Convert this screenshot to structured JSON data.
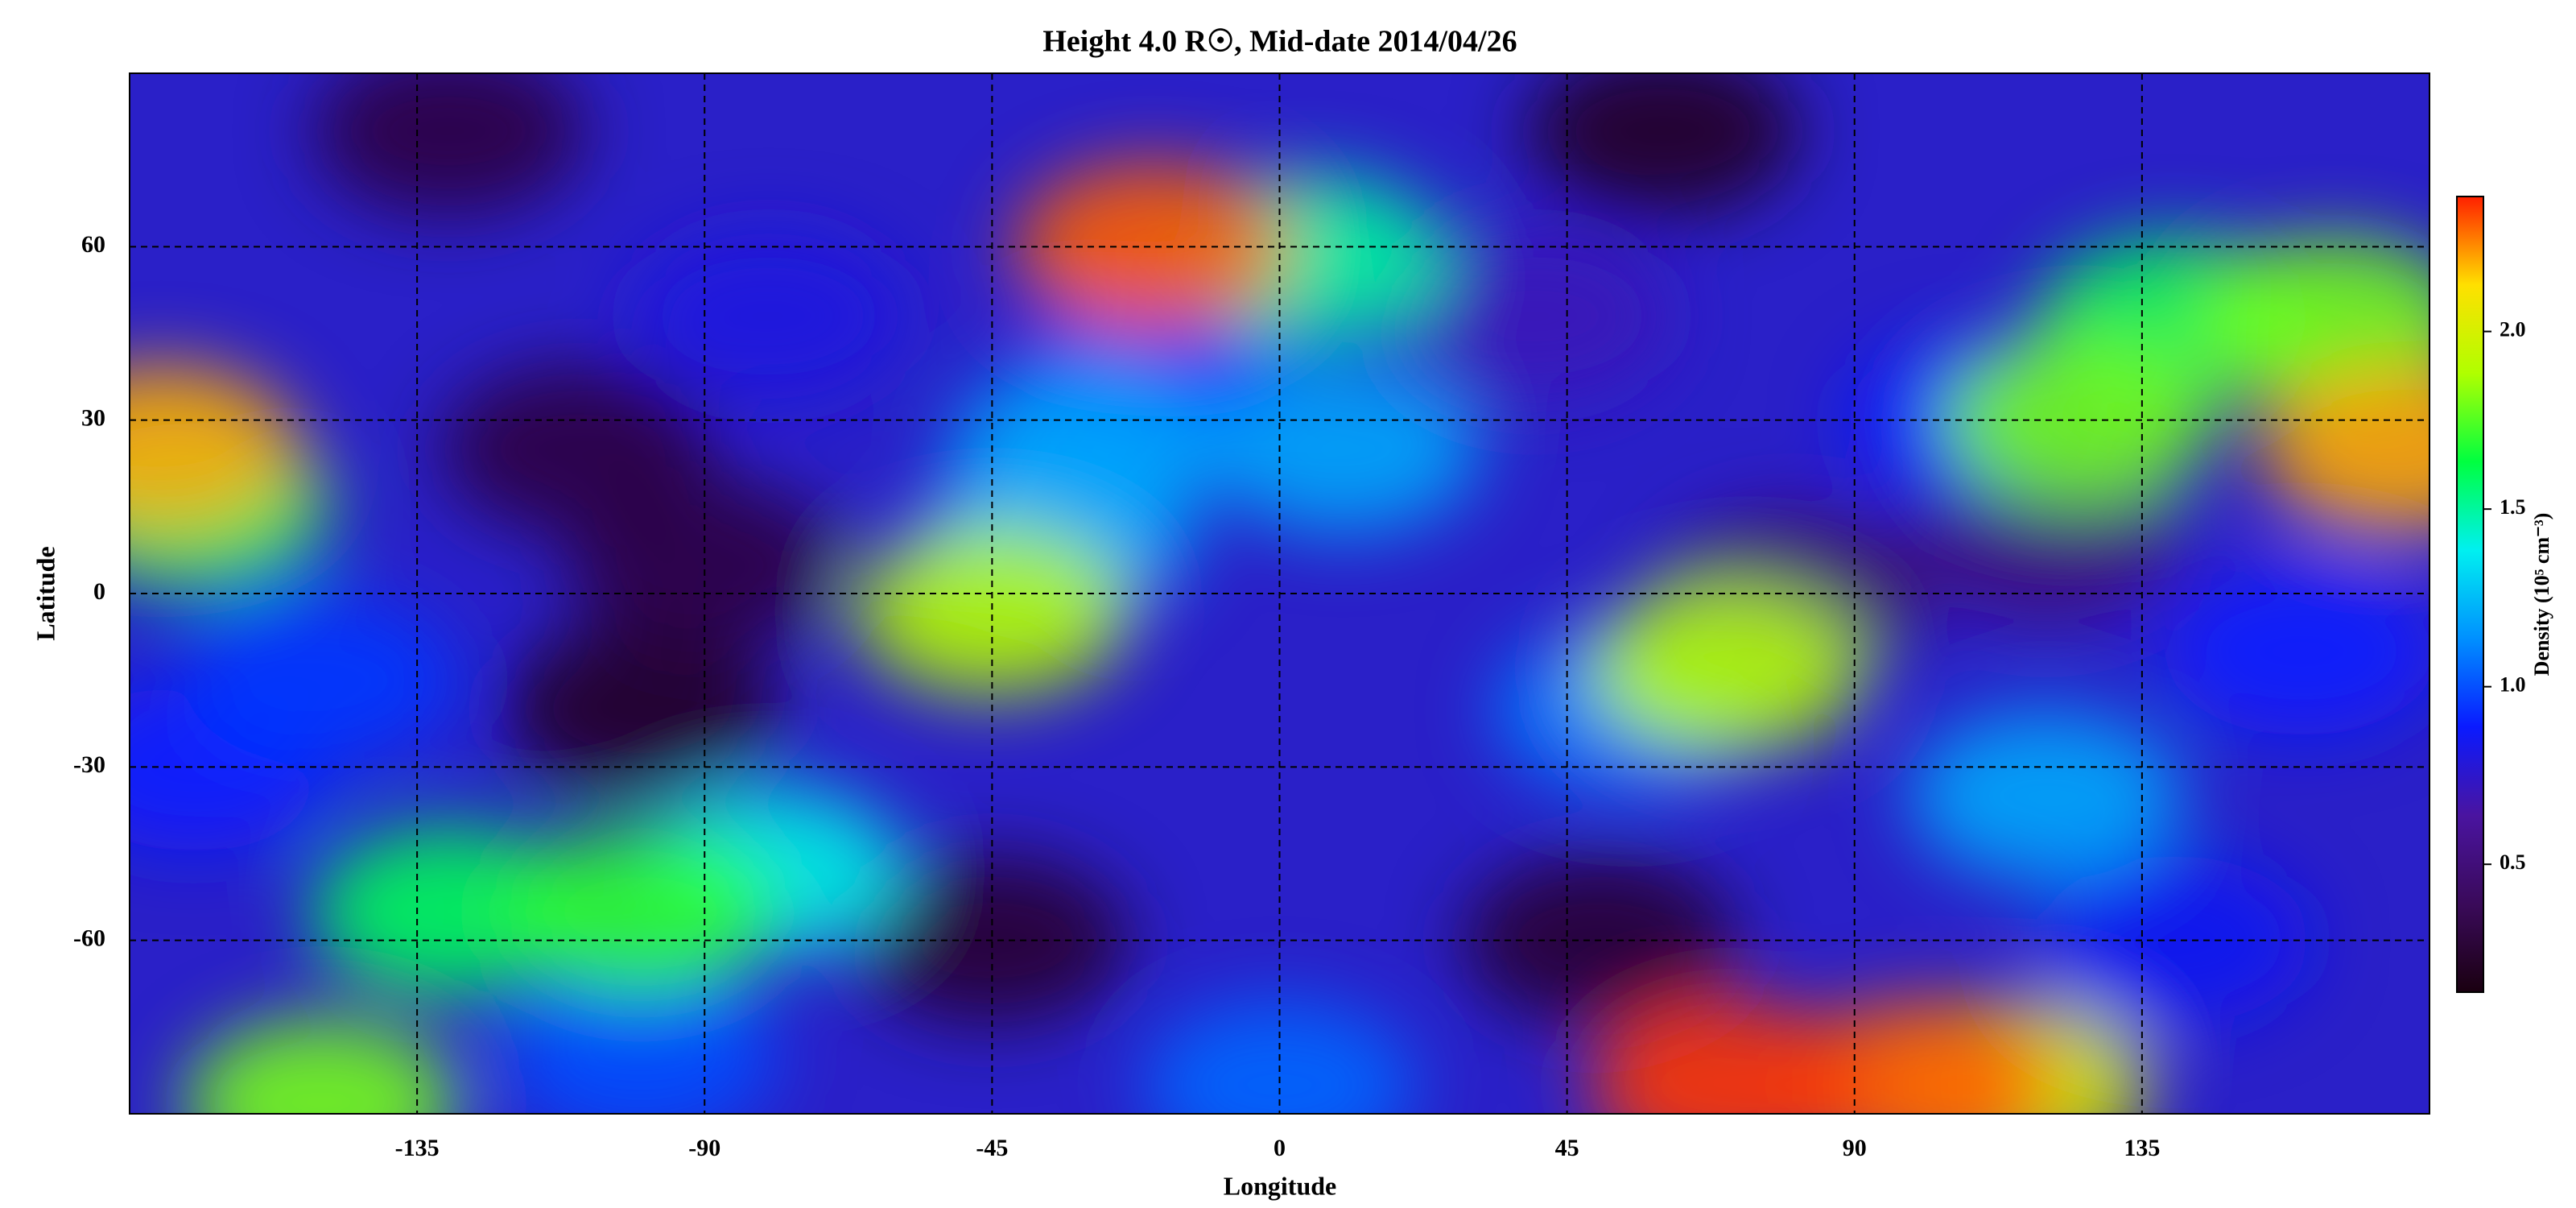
{
  "chart_data": {
    "type": "heatmap",
    "title": "Height 4.0 R☉, Mid-date 2014/04/26",
    "x_label": "Longitude",
    "y_label": "Latitude",
    "colorbar_label": "Density (10⁵ cm⁻³)",
    "xlim": [
      -180,
      180
    ],
    "xticks": [
      -135,
      -90,
      -45,
      0,
      45,
      90,
      135
    ],
    "ylim": [
      -90,
      90
    ],
    "yticks": [
      -60,
      -30,
      0,
      30,
      60
    ],
    "clim": [
      0.14,
      2.38
    ],
    "cticks": [
      0.5,
      {
        "value": 1,
        "label": "1.0"
      },
      1.5,
      {
        "value": 2,
        "label": "2.0"
      }
    ],
    "colormap": [
      "#1a0010",
      "#3a0a5a",
      "#4a14a0",
      "#0a1aff",
      "#0090ff",
      "#00f0f0",
      "#00ff40",
      "#b0ff00",
      "#ffe000",
      "#ff2000"
    ],
    "grid": true,
    "x": [
      60,
      -130,
      -100,
      -45,
      50,
      -90,
      -110,
      80,
      120,
      -80,
      40,
      160,
      140,
      -170,
      -20,
      -150,
      110,
      -100,
      0,
      55,
      -35,
      -30,
      10,
      120,
      -80,
      -150,
      5,
      -130,
      140,
      -170,
      -100,
      165,
      125,
      -45,
      70,
      115,
      -20,
      -175,
      175,
      100,
      70
    ],
    "y": [
      80,
      80,
      -20,
      -60,
      -60,
      5,
      25,
      0,
      10,
      48,
      48,
      -10,
      -60,
      -30,
      35,
      -15,
      30,
      -80,
      -85,
      -20,
      10,
      25,
      25,
      -35,
      -48,
      -88,
      58,
      -55,
      47,
      15,
      -55,
      47,
      30,
      -3,
      -13,
      -85,
      60,
      25,
      25,
      -85,
      -85
    ],
    "values": [
      0.2,
      0.3,
      0.2,
      0.25,
      0.25,
      0.3,
      0.3,
      0.45,
      0.5,
      0.8,
      0.7,
      0.9,
      0.85,
      0.9,
      0.9,
      0.95,
      0.9,
      1.0,
      1.05,
      1.1,
      1.2,
      1.2,
      1.2,
      1.2,
      1.4,
      1.8,
      1.5,
      1.6,
      1.6,
      1.6,
      1.7,
      1.8,
      1.8,
      1.9,
      1.9,
      2.0,
      2.3,
      2.2,
      2.2,
      2.3,
      2.35
    ]
  }
}
